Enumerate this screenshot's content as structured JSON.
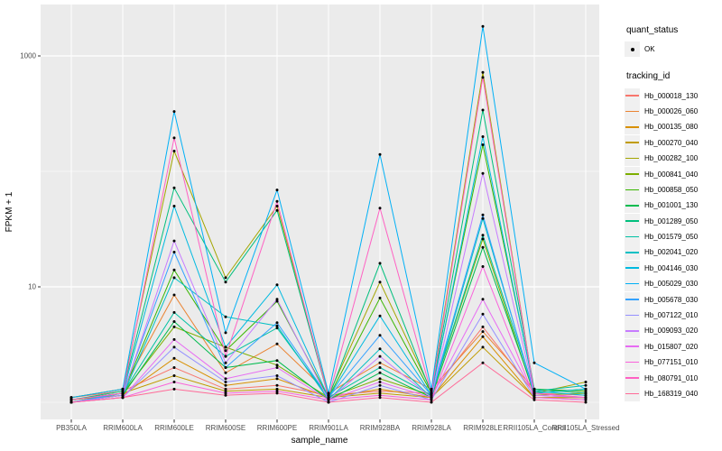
{
  "styles": {
    "background": "#FFFFFF",
    "panel_fill": "#EBEBEB",
    "grid_color": "#FFFFFF",
    "axis_text_color": "#4D4D4D",
    "tick_color": "#333333",
    "point_color": "#000000",
    "legend_key_fill": "#F0F0F0"
  },
  "legend": {
    "quant_status_title": "quant_status",
    "quant_status_items": [
      {
        "label": "OK",
        "marker": "black-point"
      }
    ],
    "tracking_title": "tracking_id"
  },
  "chart_data": {
    "type": "line",
    "title": "",
    "xlabel": "sample_name",
    "ylabel": "FPKM + 1",
    "y_scale": "log10",
    "y_major_ticks": [
      {
        "label": "10",
        "value": 10
      },
      {
        "label": "1000",
        "value": 1000
      }
    ],
    "y_minor_ticks": [
      1,
      100
    ],
    "ylim": [
      1,
      2800
    ],
    "grid": true,
    "legend_position": "right",
    "points": "black dot at every vertex (quant_status OK)",
    "categories": [
      "PB350LA",
      "RRIM600LA",
      "RRIM600LE",
      "RRIM600SE",
      "RRIM600PE",
      "RRIM901LA",
      "RRIM928BA",
      "RRIM928LA",
      "RRIM928LE",
      "RRII105LA_Control",
      "RRII105LA_Stressed"
    ],
    "series": [
      {
        "name": "Hb_000018_130",
        "color": "#F8766D",
        "values": [
          1.1,
          1.25,
          2.0,
          1.3,
          1.4,
          1.15,
          1.25,
          1.2,
          4.5,
          1.2,
          1.15
        ]
      },
      {
        "name": "Hb_000026_060",
        "color": "#EA8331",
        "values": [
          1.1,
          1.3,
          8.5,
          1.8,
          3.2,
          1.2,
          2.2,
          1.3,
          4.1,
          1.3,
          1.2
        ]
      },
      {
        "name": "Hb_000135_080",
        "color": "#D89000",
        "values": [
          1.05,
          1.15,
          2.4,
          1.4,
          1.6,
          1.1,
          1.3,
          1.1,
          3.7,
          1.1,
          1.1
        ]
      },
      {
        "name": "Hb_000270_040",
        "color": "#C09B00",
        "values": [
          1.05,
          1.2,
          1.7,
          1.25,
          1.3,
          1.1,
          1.2,
          1.1,
          3.0,
          1.1,
          1.1
        ]
      },
      {
        "name": "Hb_000282_100",
        "color": "#A3A500",
        "values": [
          1.1,
          1.3,
          150,
          12,
          50,
          1.15,
          11,
          1.25,
          720,
          1.2,
          1.5
        ]
      },
      {
        "name": "Hb_000841_040",
        "color": "#7CAE00",
        "values": [
          1.05,
          1.2,
          4.5,
          3.0,
          2.1,
          1.1,
          1.6,
          1.15,
          26,
          1.15,
          1.2
        ]
      },
      {
        "name": "Hb_000858_050",
        "color": "#39B600",
        "values": [
          1.05,
          1.2,
          14,
          2.8,
          7.5,
          1.1,
          8.0,
          1.2,
          170,
          1.3,
          1.25
        ]
      },
      {
        "name": "Hb_001001_130",
        "color": "#00BB4E",
        "values": [
          1.0,
          1.15,
          5.0,
          2.0,
          2.3,
          1.05,
          1.8,
          1.1,
          22,
          1.2,
          1.3
        ]
      },
      {
        "name": "Hb_001289_050",
        "color": "#00BF7D",
        "values": [
          1.05,
          1.25,
          72,
          11,
          46,
          1.1,
          16,
          1.2,
          340,
          1.3,
          1.2
        ]
      },
      {
        "name": "Hb_001579_050",
        "color": "#00C1A3",
        "values": [
          1.0,
          1.2,
          6.0,
          2.5,
          4.4,
          1.1,
          2.0,
          1.15,
          28,
          1.25,
          1.4
        ]
      },
      {
        "name": "Hb_002041_020",
        "color": "#00BFC4",
        "values": [
          1.0,
          1.15,
          12,
          5.5,
          4.6,
          1.05,
          2.9,
          1.1,
          39,
          1.2,
          1.3
        ]
      },
      {
        "name": "Hb_004146_030",
        "color": "#00BAE0",
        "values": [
          1.0,
          1.2,
          50,
          3.0,
          10.4,
          1.1,
          5.6,
          1.15,
          200,
          1.25,
          1.15
        ]
      },
      {
        "name": "Hb_005029_030",
        "color": "#00B0F6",
        "values": [
          1.1,
          1.3,
          330,
          4.0,
          69,
          1.2,
          140,
          1.3,
          1800,
          2.2,
          1.3
        ]
      },
      {
        "name": "Hb_005678_030",
        "color": "#35A2FF",
        "values": [
          1.0,
          1.2,
          20,
          2.0,
          4.9,
          1.1,
          3.8,
          1.15,
          42,
          1.15,
          1.1
        ]
      },
      {
        "name": "Hb_007122_010",
        "color": "#9590FF",
        "values": [
          1.0,
          1.1,
          3.0,
          1.5,
          1.7,
          1.0,
          1.4,
          1.05,
          5.8,
          1.1,
          1.05
        ]
      },
      {
        "name": "Hb_009093_020",
        "color": "#C77CFF",
        "values": [
          1.0,
          1.15,
          25,
          2.2,
          7.8,
          1.05,
          2.5,
          1.1,
          96,
          1.2,
          1.1
        ]
      },
      {
        "name": "Hb_015807_020",
        "color": "#E76BF3",
        "values": [
          1.0,
          1.1,
          3.5,
          1.6,
          2.0,
          1.05,
          1.5,
          1.1,
          7.8,
          1.15,
          1.1
        ]
      },
      {
        "name": "Hb_077151_010",
        "color": "#FA62DB",
        "values": [
          1.0,
          1.1,
          1.5,
          1.2,
          1.25,
          1.05,
          1.15,
          1.05,
          15,
          1.1,
          1.05
        ]
      },
      {
        "name": "Hb_080791_010",
        "color": "#FF61C3",
        "values": [
          1.05,
          1.2,
          195,
          2.5,
          55,
          1.1,
          48,
          1.2,
          650,
          1.2,
          1.1
        ]
      },
      {
        "name": "Hb_168319_040",
        "color": "#FF6A98",
        "values": [
          1.0,
          1.1,
          1.3,
          1.15,
          1.2,
          1.0,
          1.1,
          1.0,
          2.2,
          1.05,
          1.0
        ]
      }
    ]
  }
}
